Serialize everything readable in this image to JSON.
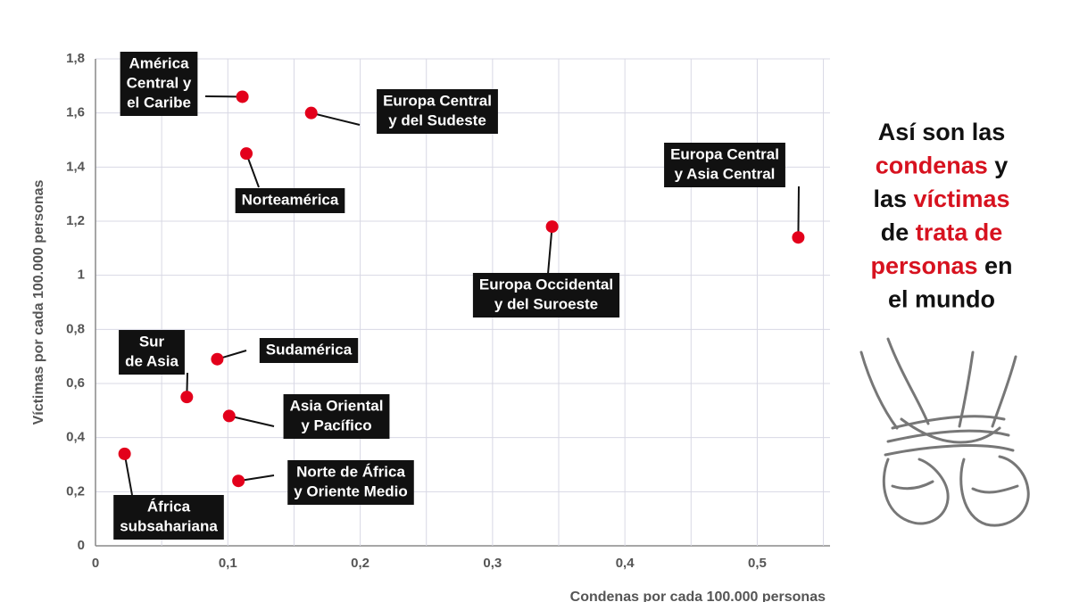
{
  "chart_data": {
    "type": "scatter",
    "y_label": "Víctimas por cada 100.000 personas",
    "x_label": "Condenas por cada 100.000 personas",
    "color": "#e3001b",
    "grid": true,
    "xlim": [
      0,
      0.555
    ],
    "ylim": [
      0,
      1.8
    ],
    "xticks": [
      0,
      {
        "value": 0.1,
        "label": "0,1"
      },
      {
        "value": 0.2,
        "label": "0,2"
      },
      {
        "value": 0.3,
        "label": "0,3"
      },
      {
        "value": 0.4,
        "label": "0,4"
      },
      {
        "value": 0.5,
        "label": "0,5"
      }
    ],
    "xminorticks": [
      0.05,
      0.15,
      0.25,
      0.35,
      0.45,
      0.55
    ],
    "yticks": [
      0,
      {
        "value": 0.2,
        "label": "0,2"
      },
      {
        "value": 0.4,
        "label": "0,4"
      },
      {
        "value": 0.6,
        "label": "0,6"
      },
      {
        "value": 0.8,
        "label": "0,8"
      },
      1,
      {
        "value": 1.2,
        "label": "1,2"
      },
      {
        "value": 1.4,
        "label": "1,4"
      },
      {
        "value": 1.6,
        "label": "1,6"
      },
      {
        "value": 1.8,
        "label": "1,8"
      }
    ],
    "point_labels": [
      [
        "América",
        "Central y",
        "el Caribe"
      ],
      [
        "Europa Central",
        "y del Sudeste"
      ],
      [
        "Norteamérica"
      ],
      [
        "Europa Occidental",
        "y del Suroeste"
      ],
      [
        "Europa Central",
        "y Asia Central"
      ],
      [
        "Sudamérica"
      ],
      [
        "Sur",
        "de Asia"
      ],
      [
        "Asia Oriental",
        "y Pacífico"
      ],
      [
        "África",
        "subsahariana"
      ],
      [
        "Norte de África",
        "y Oriente Medio"
      ]
    ],
    "x": [
      0.111,
      0.163,
      0.114,
      0.345,
      0.531,
      0.092,
      0.069,
      0.101,
      0.022,
      0.108
    ],
    "values": [
      1.66,
      1.6,
      1.45,
      1.18,
      1.14,
      0.69,
      0.55,
      0.48,
      0.34,
      0.24
    ]
  },
  "side_title": [
    [
      {
        "text": "Así son las",
        "color": "#111111"
      }
    ],
    [
      {
        "text": "condenas",
        "color": "#d7121f"
      },
      {
        "text": " y",
        "color": "#111111"
      }
    ],
    [
      {
        "text": "las ",
        "color": "#111111"
      },
      {
        "text": "víctimas",
        "color": "#d7121f"
      }
    ],
    [
      {
        "text": "de ",
        "color": "#111111"
      },
      {
        "text": "trata de",
        "color": "#d7121f"
      }
    ],
    [
      {
        "text": "personas",
        "color": "#d7121f"
      },
      {
        "text": " en",
        "color": "#111111"
      }
    ],
    [
      {
        "text": "el mundo",
        "color": "#111111"
      }
    ]
  ]
}
